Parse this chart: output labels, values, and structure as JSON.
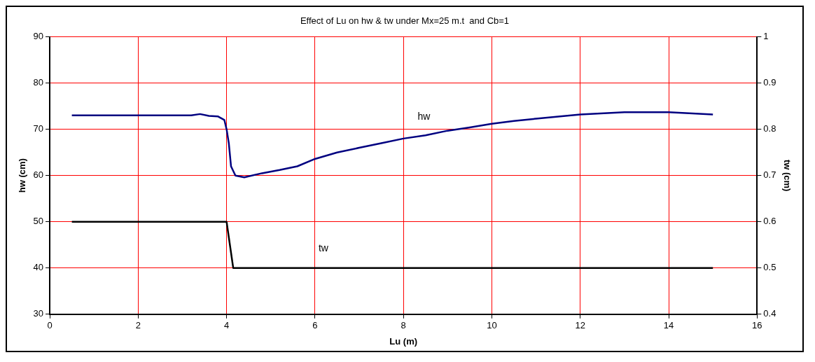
{
  "chart_data": {
    "type": "line",
    "title": "Effect of Lu on hw & tw under Mx=25 m.t  and Cb=1",
    "xlabel": "Lu (m)",
    "ylabel": "hw (cm)",
    "y2label": "tw (cm)",
    "xlim": [
      0,
      16
    ],
    "xticks": [
      0,
      2,
      4,
      6,
      8,
      10,
      12,
      14,
      16
    ],
    "ylim": [
      30,
      90
    ],
    "yticks": [
      30,
      40,
      50,
      60,
      70,
      80,
      90
    ],
    "y2lim": [
      0.4,
      1
    ],
    "y2ticks": [
      0.4,
      0.5,
      0.6,
      0.7,
      0.8,
      0.9,
      1
    ],
    "grid": true,
    "legend": false,
    "marker": "none",
    "line_style": "solid",
    "series": [
      {
        "name": "hw",
        "color": "#000080",
        "x": [
          0.5,
          1,
          2,
          3,
          3.2,
          3.4,
          3.6,
          3.8,
          3.95,
          4.0,
          4.05,
          4.1,
          4.2,
          4.4,
          4.8,
          5.2,
          5.6,
          6,
          6.5,
          7,
          7.5,
          8,
          8.5,
          9,
          9.5,
          10,
          10.5,
          11,
          12,
          13,
          14,
          15
        ],
        "values": [
          73,
          73,
          73,
          73,
          73,
          73.3,
          72.9,
          72.8,
          72,
          70,
          67,
          62,
          60,
          59.6,
          60.5,
          61.2,
          62,
          63.6,
          65,
          66,
          67,
          68,
          68.7,
          69.7,
          70.4,
          71.2,
          71.8,
          72.3,
          73.2,
          73.7,
          73.7,
          73.2
        ]
      },
      {
        "name": "tw",
        "color": "#000000",
        "axis": "y2",
        "x": [
          0.5,
          2,
          4,
          4.15,
          6,
          10,
          15
        ],
        "values": [
          0.6,
          0.6,
          0.6,
          0.5,
          0.5,
          0.5,
          0.5
        ]
      }
    ]
  }
}
